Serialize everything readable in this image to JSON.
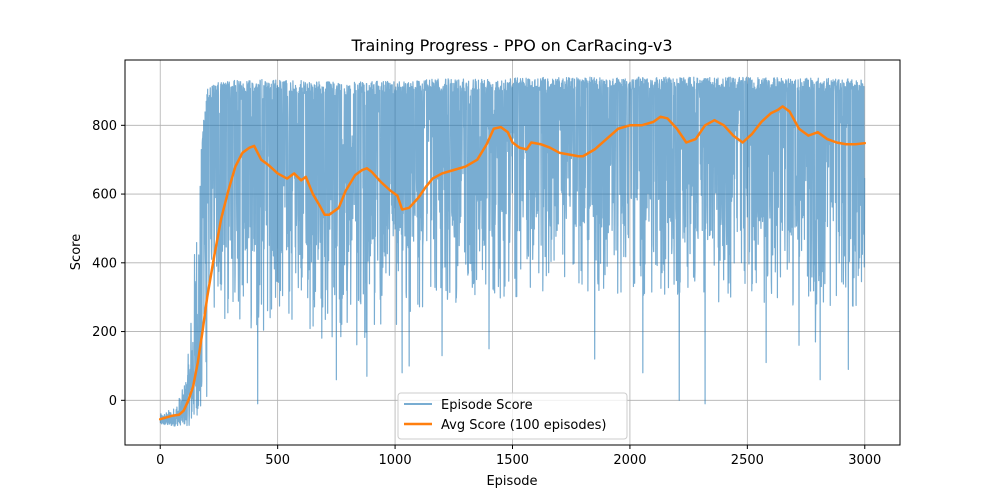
{
  "chart_data": {
    "type": "line",
    "title": "Training Progress - PPO on CarRacing-v3",
    "xlabel": "Episode",
    "ylabel": "Score",
    "xlim": [
      -150,
      3150
    ],
    "ylim": [
      -130,
      990
    ],
    "x_ticks": [
      0,
      500,
      1000,
      1500,
      2000,
      2500,
      3000
    ],
    "y_ticks": [
      0,
      200,
      400,
      600,
      800
    ],
    "grid": true,
    "legend_position": "bottom-center",
    "colors": {
      "episode": "#1f77b4",
      "avg": "#ff7f0e"
    },
    "series": [
      {
        "name": "Episode Score",
        "style": "thin-line-alpha",
        "episode_count": 3000,
        "envelope": [
          {
            "x": 0,
            "low": -70,
            "high": -40
          },
          {
            "x": 60,
            "low": -75,
            "high": -20
          },
          {
            "x": 100,
            "low": -70,
            "high": 40
          },
          {
            "x": 120,
            "low": -75,
            "high": 140
          },
          {
            "x": 140,
            "low": -60,
            "high": 370
          },
          {
            "x": 160,
            "low": -40,
            "high": 630
          },
          {
            "x": 180,
            "low": -30,
            "high": 790
          },
          {
            "x": 200,
            "low": 0,
            "high": 910
          },
          {
            "x": 250,
            "low": 150,
            "high": 925
          },
          {
            "x": 300,
            "low": 250,
            "high": 930
          },
          {
            "x": 400,
            "low": 200,
            "high": 935
          },
          {
            "x": 600,
            "low": 200,
            "high": 930
          },
          {
            "x": 800,
            "low": 150,
            "high": 925
          },
          {
            "x": 1000,
            "low": 200,
            "high": 930
          },
          {
            "x": 1200,
            "low": 280,
            "high": 935
          },
          {
            "x": 1500,
            "low": 300,
            "high": 940
          },
          {
            "x": 2000,
            "low": 300,
            "high": 940
          },
          {
            "x": 2500,
            "low": 280,
            "high": 940
          },
          {
            "x": 3000,
            "low": 250,
            "high": 935
          }
        ],
        "dips": [
          {
            "x": 415,
            "y": -10
          },
          {
            "x": 750,
            "y": 60
          },
          {
            "x": 880,
            "y": 70
          },
          {
            "x": 1030,
            "y": 80
          },
          {
            "x": 1060,
            "y": 100
          },
          {
            "x": 1200,
            "y": 130
          },
          {
            "x": 1400,
            "y": 150
          },
          {
            "x": 1850,
            "y": 120
          },
          {
            "x": 2055,
            "y": 80
          },
          {
            "x": 2210,
            "y": 0
          },
          {
            "x": 2320,
            "y": -10
          },
          {
            "x": 2580,
            "y": 110
          },
          {
            "x": 2720,
            "y": 160
          },
          {
            "x": 2790,
            "y": 170
          },
          {
            "x": 2810,
            "y": 60
          },
          {
            "x": 2930,
            "y": 90
          }
        ]
      },
      {
        "name": "Avg Score (100 episodes)",
        "style": "thick-line",
        "x": [
          0,
          50,
          80,
          100,
          120,
          140,
          160,
          180,
          200,
          230,
          260,
          290,
          320,
          350,
          380,
          400,
          430,
          460,
          500,
          540,
          570,
          600,
          620,
          650,
          680,
          700,
          720,
          760,
          790,
          830,
          860,
          880,
          900,
          940,
          980,
          1010,
          1030,
          1060,
          1100,
          1130,
          1160,
          1200,
          1250,
          1300,
          1350,
          1390,
          1420,
          1450,
          1480,
          1500,
          1530,
          1560,
          1580,
          1620,
          1660,
          1700,
          1740,
          1780,
          1800,
          1850,
          1900,
          1950,
          2000,
          2050,
          2100,
          2130,
          2160,
          2200,
          2240,
          2280,
          2320,
          2360,
          2400,
          2440,
          2480,
          2520,
          2560,
          2600,
          2630,
          2650,
          2680,
          2720,
          2760,
          2800,
          2840,
          2880,
          2920,
          2960,
          3000
        ],
        "values": [
          -55,
          -45,
          -42,
          -30,
          0,
          40,
          110,
          200,
          300,
          420,
          530,
          610,
          680,
          720,
          735,
          740,
          700,
          685,
          660,
          645,
          660,
          640,
          650,
          600,
          565,
          540,
          540,
          560,
          610,
          655,
          670,
          675,
          665,
          635,
          610,
          595,
          555,
          560,
          590,
          620,
          645,
          660,
          670,
          680,
          700,
          745,
          790,
          795,
          780,
          750,
          735,
          730,
          750,
          745,
          735,
          720,
          715,
          710,
          710,
          730,
          760,
          790,
          800,
          800,
          810,
          825,
          820,
          790,
          750,
          760,
          800,
          815,
          800,
          770,
          750,
          775,
          810,
          835,
          845,
          855,
          840,
          790,
          770,
          780,
          760,
          750,
          745,
          745,
          748
        ]
      }
    ]
  }
}
